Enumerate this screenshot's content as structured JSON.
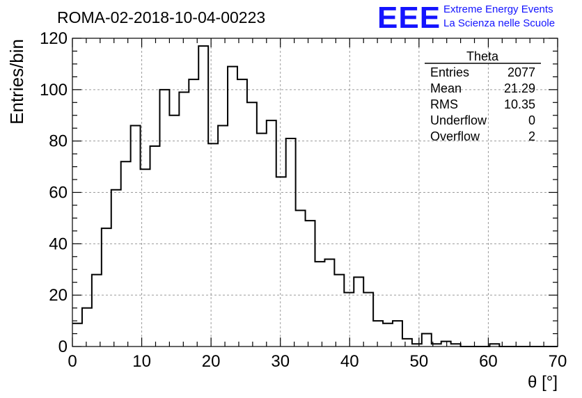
{
  "title": "ROMA-02-2018-10-04-00223",
  "logo": {
    "text": "EEE",
    "line1": "Extreme Energy Events",
    "line2": "La Scienza nelle Scuole",
    "color": "#1414ff"
  },
  "stats": {
    "name": "Theta",
    "rows": [
      {
        "label": "Entries",
        "value": "2077"
      },
      {
        "label": "Mean",
        "value": "21.29"
      },
      {
        "label": "RMS",
        "value": "10.35"
      },
      {
        "label": "Underflow",
        "value": "0"
      },
      {
        "label": "Overflow",
        "value": "2"
      }
    ]
  },
  "chart_data": {
    "type": "histogram",
    "title": "ROMA-02-2018-10-04-00223",
    "xlabel": "θ [°]",
    "ylabel": "Entries/bin",
    "xlim": [
      0,
      70
    ],
    "ylim": [
      0,
      120
    ],
    "bin_width": 1.4,
    "x_ticks": [
      0,
      10,
      20,
      30,
      40,
      50,
      60,
      70
    ],
    "y_ticks": [
      0,
      20,
      40,
      60,
      80,
      100,
      120
    ],
    "grid": true,
    "counts": [
      9,
      15,
      28,
      46,
      61,
      72,
      86,
      69,
      78,
      100,
      90,
      99,
      104,
      117,
      79,
      86,
      109,
      104,
      95,
      83,
      88,
      66,
      81,
      53,
      49,
      33,
      34,
      28,
      21,
      27,
      21,
      10,
      9,
      10,
      3,
      1,
      5,
      1,
      2,
      1,
      0,
      0,
      0,
      1,
      0,
      0,
      0,
      0,
      0,
      0
    ]
  }
}
